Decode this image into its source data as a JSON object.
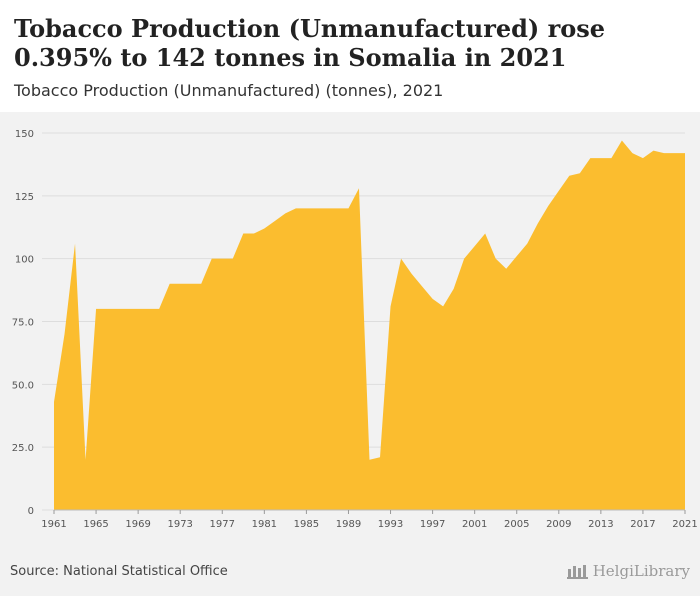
{
  "header": {
    "title": "Tobacco Production (Unmanufactured) rose 0.395% to 142 tonnes in Somalia in 2021",
    "subtitle": "Tobacco Production (Unmanufactured) (tonnes), 2021"
  },
  "footer": {
    "source": "Source: National Statistical Office",
    "brand": "HelgiLibrary"
  },
  "colors": {
    "area": "#fbbd2f",
    "grid": "#dddddd",
    "background": "#f2f2f2"
  },
  "chart_data": {
    "type": "area",
    "title": "",
    "xlabel": "",
    "ylabel": "",
    "ylim": [
      0,
      150
    ],
    "yticks": [
      0,
      25.0,
      50.0,
      75.0,
      100,
      125,
      150
    ],
    "ytick_labels": [
      "0",
      "25.0",
      "50.0",
      "75.0",
      "100",
      "125",
      "150"
    ],
    "xticks": [
      1961,
      1965,
      1969,
      1973,
      1977,
      1981,
      1985,
      1989,
      1993,
      1997,
      2001,
      2005,
      2009,
      2013,
      2017,
      2021
    ],
    "grid": true,
    "legend": "none",
    "series": [
      {
        "x": [
          1961,
          1962,
          1963,
          1964,
          1965,
          1966,
          1967,
          1968,
          1969,
          1970,
          1971,
          1972,
          1973,
          1974,
          1975,
          1976,
          1977,
          1978,
          1979,
          1980,
          1981,
          1982,
          1983,
          1984,
          1985,
          1986,
          1987,
          1988,
          1989,
          1990,
          1991,
          1992,
          1993,
          1994,
          1995,
          1996,
          1997,
          1998,
          1999,
          2000,
          2001,
          2002,
          2003,
          2004,
          2005,
          2006,
          2007,
          2008,
          2009,
          2010,
          2011,
          2012,
          2013,
          2014,
          2015,
          2016,
          2017,
          2018,
          2019,
          2020,
          2021
        ],
        "values": [
          43,
          70,
          106,
          20,
          80,
          80,
          80,
          80,
          80,
          80,
          80,
          90,
          90,
          90,
          90,
          100,
          100,
          100,
          110,
          110,
          112,
          115,
          118,
          120,
          120,
          120,
          120,
          120,
          120,
          128,
          20,
          21,
          81,
          100,
          94,
          89,
          84,
          81,
          88,
          100,
          105,
          110,
          100,
          96,
          101,
          106,
          114,
          121,
          127,
          133,
          134,
          140,
          140,
          140,
          147,
          142,
          140,
          143,
          142,
          142,
          142
        ]
      }
    ]
  }
}
